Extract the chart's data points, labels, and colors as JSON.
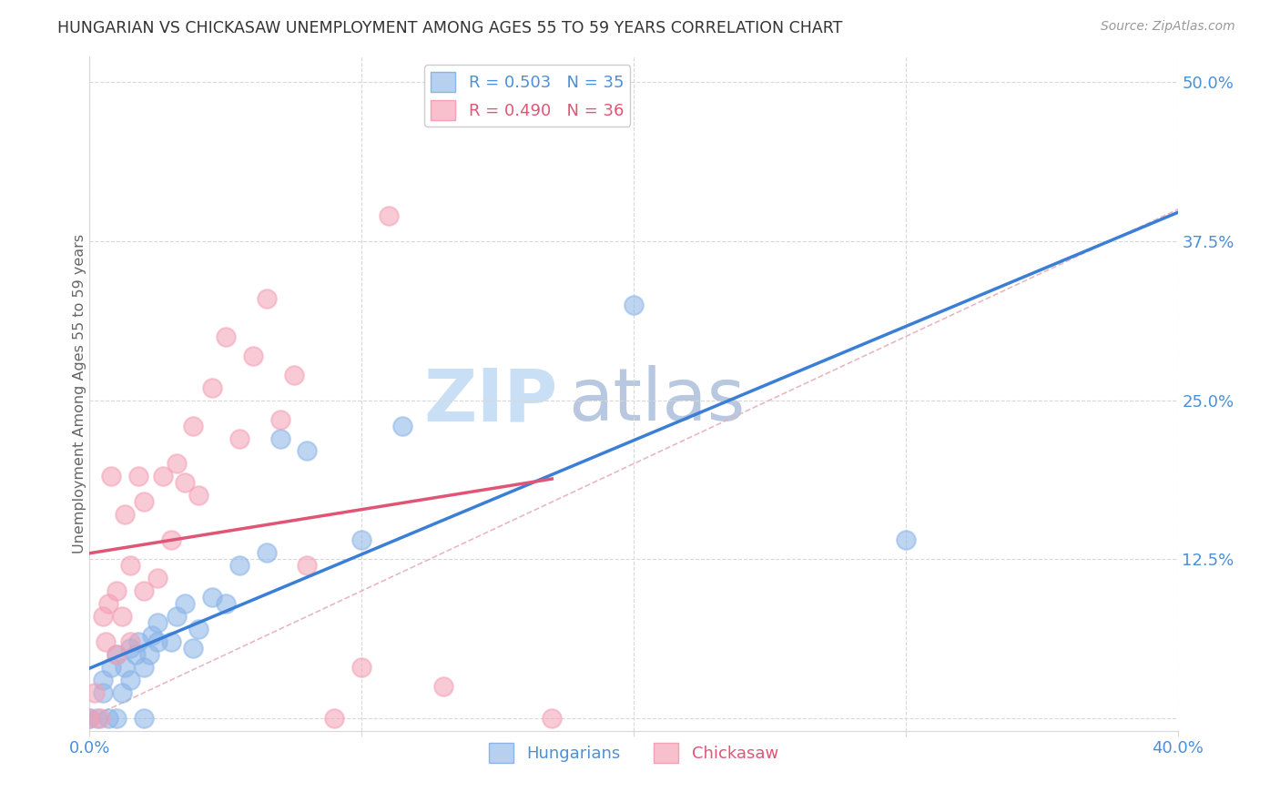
{
  "title": "HUNGARIAN VS CHICKASAW UNEMPLOYMENT AMONG AGES 55 TO 59 YEARS CORRELATION CHART",
  "source": "Source: ZipAtlas.com",
  "ylabel": "Unemployment Among Ages 55 to 59 years",
  "xlim": [
    0.0,
    0.4
  ],
  "ylim": [
    -0.01,
    0.52
  ],
  "hungarian_R": 0.503,
  "hungarian_N": 35,
  "chickasaw_R": 0.49,
  "chickasaw_N": 36,
  "hungarian_color": "#8ab4e8",
  "chickasaw_color": "#f4a0b5",
  "trend_line_color_hungarian": "#3a7fd5",
  "trend_line_color_chickasaw": "#e05575",
  "diagonal_color": "#e8b0b8",
  "watermark_zip": "ZIP",
  "watermark_atlas": "atlas",
  "watermark_color_zip": "#c8dff5",
  "watermark_color_atlas": "#b8c8e0",
  "hun_x": [
    0.0,
    0.003,
    0.005,
    0.005,
    0.007,
    0.008,
    0.01,
    0.01,
    0.012,
    0.013,
    0.015,
    0.015,
    0.017,
    0.018,
    0.02,
    0.02,
    0.022,
    0.023,
    0.025,
    0.025,
    0.03,
    0.032,
    0.035,
    0.038,
    0.04,
    0.045,
    0.05,
    0.055,
    0.065,
    0.07,
    0.08,
    0.1,
    0.115,
    0.2,
    0.3
  ],
  "hun_y": [
    0.0,
    0.0,
    0.02,
    0.03,
    0.0,
    0.04,
    0.0,
    0.05,
    0.02,
    0.04,
    0.03,
    0.055,
    0.05,
    0.06,
    0.0,
    0.04,
    0.05,
    0.065,
    0.06,
    0.075,
    0.06,
    0.08,
    0.09,
    0.055,
    0.07,
    0.095,
    0.09,
    0.12,
    0.13,
    0.22,
    0.21,
    0.14,
    0.23,
    0.325,
    0.14
  ],
  "chk_x": [
    0.0,
    0.002,
    0.004,
    0.005,
    0.006,
    0.007,
    0.008,
    0.01,
    0.01,
    0.012,
    0.013,
    0.015,
    0.015,
    0.018,
    0.02,
    0.02,
    0.025,
    0.027,
    0.03,
    0.032,
    0.035,
    0.038,
    0.04,
    0.045,
    0.05,
    0.055,
    0.06,
    0.065,
    0.07,
    0.075,
    0.08,
    0.09,
    0.1,
    0.11,
    0.13,
    0.17
  ],
  "chk_y": [
    0.0,
    0.02,
    0.0,
    0.08,
    0.06,
    0.09,
    0.19,
    0.05,
    0.1,
    0.08,
    0.16,
    0.06,
    0.12,
    0.19,
    0.1,
    0.17,
    0.11,
    0.19,
    0.14,
    0.2,
    0.185,
    0.23,
    0.175,
    0.26,
    0.3,
    0.22,
    0.285,
    0.33,
    0.235,
    0.27,
    0.12,
    0.0,
    0.04,
    0.395,
    0.025,
    0.0
  ],
  "xtick_positions": [
    0.0,
    0.1,
    0.2,
    0.3,
    0.4
  ],
  "ytick_positions": [
    0.0,
    0.125,
    0.25,
    0.375,
    0.5
  ],
  "ytick_labels": [
    "",
    "12.5%",
    "25.0%",
    "37.5%",
    "50.0%"
  ],
  "tick_color": "#4a90d9",
  "grid_color": "#d8d8d8",
  "title_color": "#333333",
  "source_color": "#999999",
  "ylabel_color": "#666666"
}
